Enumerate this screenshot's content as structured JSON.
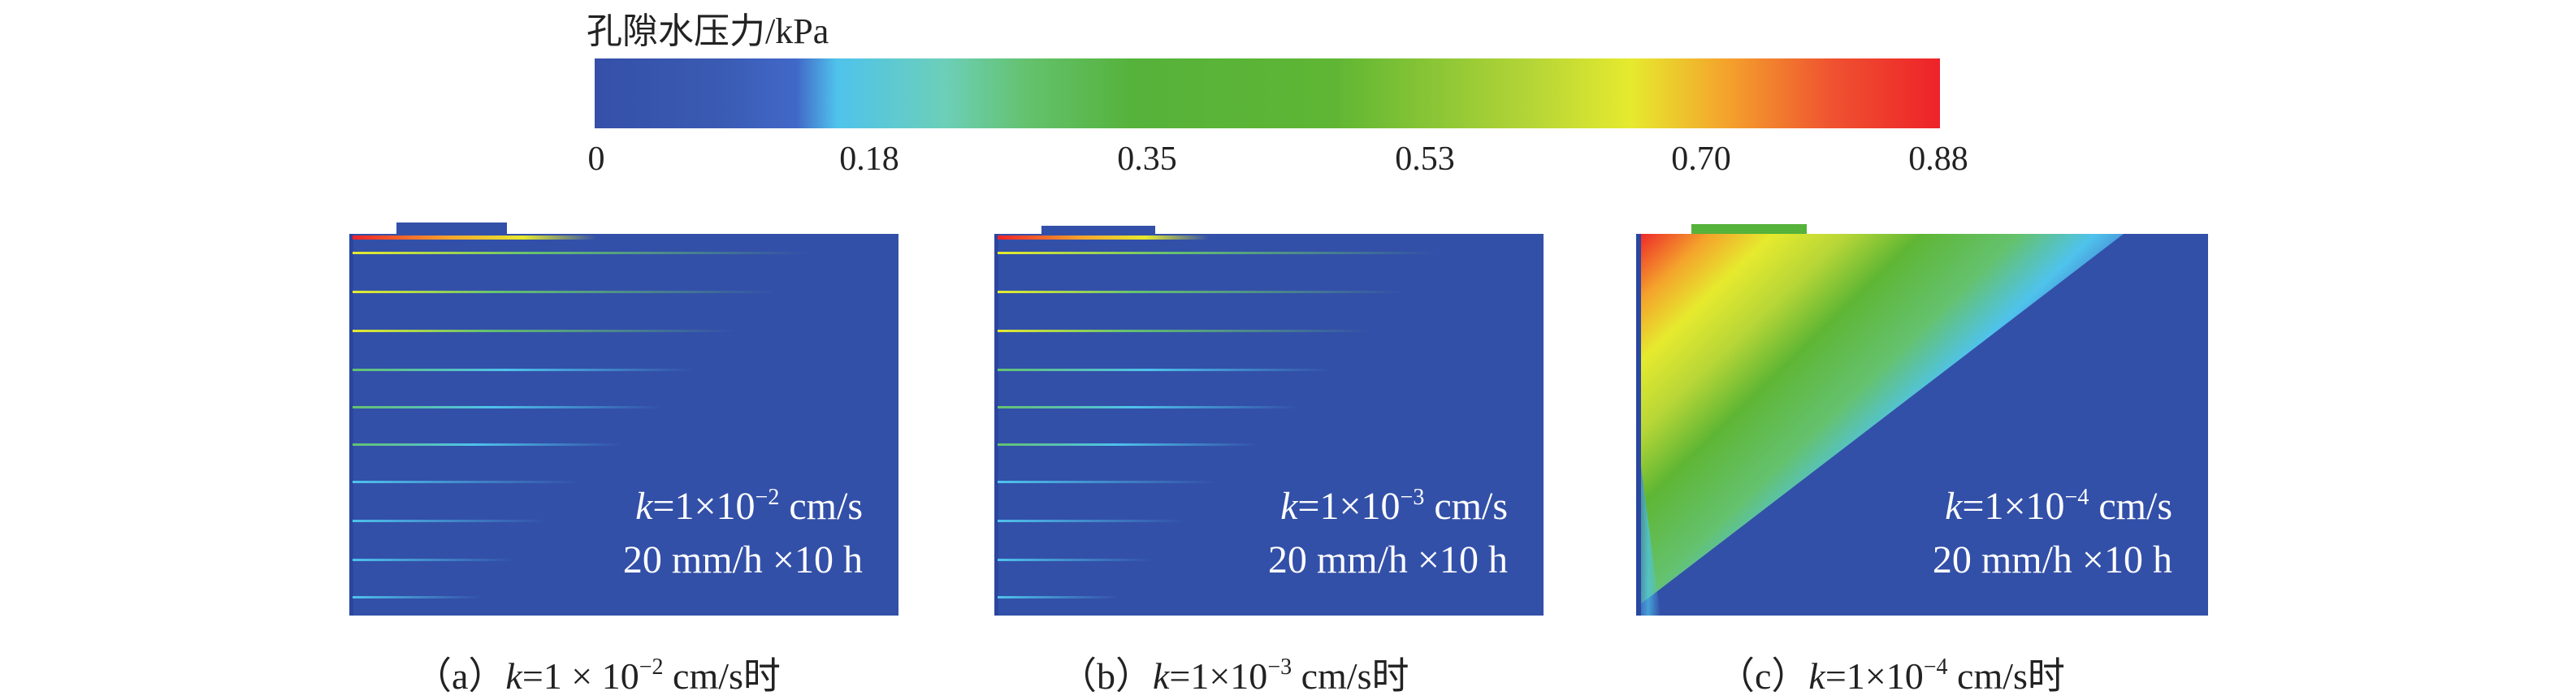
{
  "colorbar": {
    "title": "孔隙水压力/kPa",
    "ticks": [
      "0",
      "0.18",
      "0.35",
      "0.53",
      "0.70",
      "0.88"
    ],
    "range": [
      0,
      0.88
    ],
    "colors": [
      "#3550a8",
      "#4fc3ec",
      "#64c26f",
      "#5fb634",
      "#e6ea2e",
      "#f4a42c",
      "#ee2229"
    ]
  },
  "panels": [
    {
      "k_symbol": "k",
      "k_prefix": "=1×10",
      "k_exp": "−2",
      "k_unit": " cm/s",
      "rain": "20 mm/h ×10 h",
      "caption_pre": "（a）",
      "caption_k": "k",
      "caption_mid": "=1 × 10",
      "caption_exp": "−2",
      "caption_post": " cm/s时"
    },
    {
      "k_symbol": "k",
      "k_prefix": "=1×10",
      "k_exp": "−3",
      "k_unit": " cm/s",
      "rain": "20 mm/h ×10 h",
      "caption_pre": "（b）",
      "caption_k": "k",
      "caption_mid": "=1×10",
      "caption_exp": "−3",
      "caption_post": " cm/s时"
    },
    {
      "k_symbol": "k",
      "k_prefix": "=1×10",
      "k_exp": "−4",
      "k_unit": " cm/s",
      "rain": "20 mm/h ×10 h",
      "caption_pre": "（c）",
      "caption_k": "k",
      "caption_mid": "=1×10",
      "caption_exp": "−4",
      "caption_post": " cm/s时"
    }
  ]
}
